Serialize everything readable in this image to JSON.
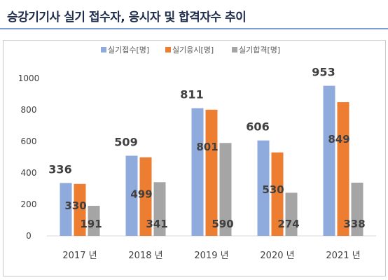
{
  "header": {
    "title": "승강기기사 실기 접수자, 응시자 및 합격자수 추이"
  },
  "colors": {
    "accent_rule": "#7f9bd3",
    "series": [
      "#8faadc",
      "#ed7d31",
      "#a5a5a5"
    ]
  },
  "chart_data": {
    "type": "bar",
    "title": "",
    "xlabel": "",
    "ylabel": "",
    "categories": [
      "2017 년",
      "2018 년",
      "2019 년",
      "2020 년",
      "2021 년"
    ],
    "series": [
      {
        "name": "실기접수[명]",
        "values": [
          336,
          509,
          811,
          606,
          953
        ]
      },
      {
        "name": "실기응시[명]",
        "values": [
          330,
          499,
          801,
          530,
          849
        ]
      },
      {
        "name": "실기합격[명]",
        "values": [
          191,
          341,
          590,
          274,
          338
        ]
      }
    ],
    "ylim": [
      0,
      1000
    ],
    "yticks": [
      0,
      200,
      400,
      600,
      800,
      1000
    ],
    "grid": false,
    "legend_position": "top"
  }
}
